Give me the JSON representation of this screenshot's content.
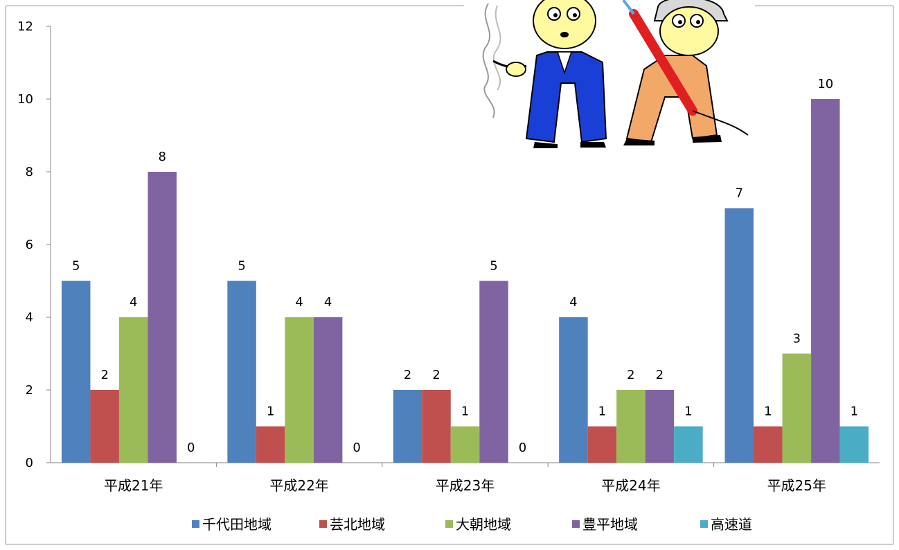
{
  "chart_data": {
    "type": "bar",
    "categories": [
      "平成21年",
      "平成22年",
      "平成23年",
      "平成24年",
      "平成25年"
    ],
    "series": [
      {
        "name": "千代田地域",
        "color": "#4F81BD",
        "values": [
          5,
          5,
          2,
          4,
          7
        ]
      },
      {
        "name": "芸北地域",
        "color": "#C0504D",
        "values": [
          2,
          1,
          2,
          1,
          1
        ]
      },
      {
        "name": "大朝地域",
        "color": "#9BBB59",
        "values": [
          4,
          4,
          1,
          2,
          3
        ]
      },
      {
        "name": "豊平地域",
        "color": "#8064A2",
        "values": [
          8,
          4,
          5,
          2,
          10
        ]
      },
      {
        "name": "高速道",
        "color": "#4BACC6",
        "values": [
          0,
          0,
          0,
          1,
          1
        ]
      }
    ],
    "ylim": [
      0,
      12
    ],
    "yticks": [
      0,
      2,
      4,
      6,
      8,
      10,
      12
    ],
    "grid": false,
    "legend": "bottom",
    "data_labels": true
  },
  "illustration": {
    "description_icon": "cartoon-officials-icon"
  }
}
